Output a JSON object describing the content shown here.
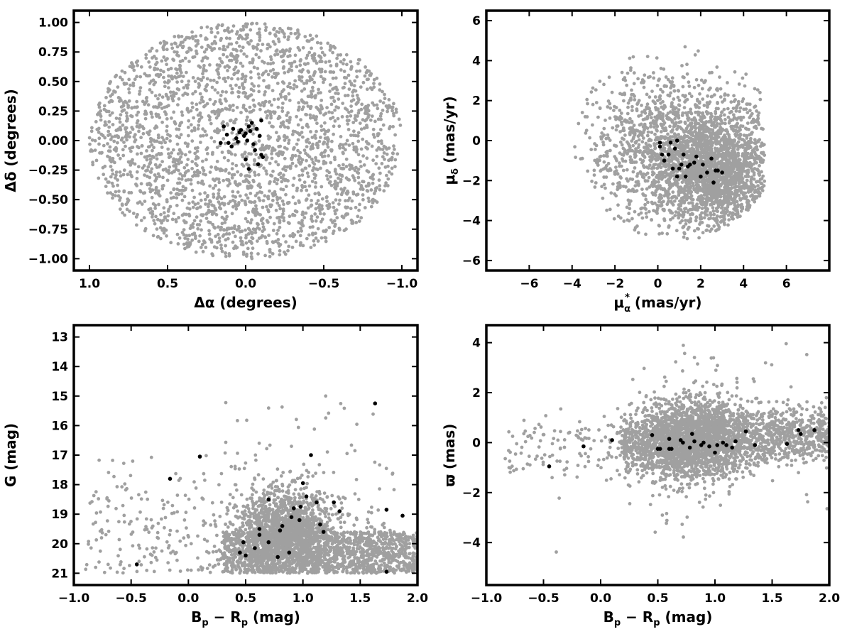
{
  "colors": {
    "field": "#a0a0a0",
    "members": "#000000",
    "frame": "#000000",
    "background": "#ffffff"
  },
  "chart_data": [
    {
      "type": "scatter",
      "id": "sky",
      "xlabel": "Δα (degrees)",
      "ylabel": "Δδ (degrees)",
      "xlim": [
        1.1,
        -1.1
      ],
      "ylim": [
        -1.1,
        1.1
      ],
      "x_inverted": true,
      "xticks": [
        1.0,
        0.5,
        0.0,
        -0.5,
        -1.0
      ],
      "xtick_labels": [
        "1.0",
        "0.5",
        "0.0",
        "−0.5",
        "−1.0"
      ],
      "yticks": [
        1.0,
        0.75,
        0.5,
        0.25,
        0.0,
        -0.25,
        -0.5,
        -0.75,
        -1.0
      ],
      "ytick_labels": [
        "1.00",
        "0.75",
        "0.50",
        "0.25",
        "0.00",
        "−0.25",
        "−0.50",
        "−0.75",
        "−1.00"
      ],
      "grid": false,
      "series": [
        {
          "role": "field",
          "color": "#a0a0a0",
          "count_shown": 2600,
          "distribution": {
            "shape": "disk",
            "center": [
              0,
              0
            ],
            "radius": 1.0
          },
          "points": []
        },
        {
          "role": "members",
          "color": "#000000",
          "points": [
            [
              0.14,
              0.12
            ],
            [
              0.12,
              0.05
            ],
            [
              0.11,
              -0.02
            ],
            [
              0.08,
              0.1
            ],
            [
              0.06,
              0.02
            ],
            [
              0.05,
              -0.01
            ],
            [
              0.04,
              0.07
            ],
            [
              0.03,
              0.09
            ],
            [
              0.01,
              0.04
            ],
            [
              0.0,
              0.06
            ],
            [
              -0.01,
              0.0
            ],
            [
              -0.02,
              0.12
            ],
            [
              -0.03,
              0.08
            ],
            [
              -0.04,
              0.15
            ],
            [
              -0.05,
              -0.03
            ],
            [
              -0.07,
              0.1
            ],
            [
              -0.1,
              0.17
            ],
            [
              -0.1,
              -0.12
            ],
            [
              -0.09,
              0.04
            ],
            [
              0.0,
              -0.16
            ],
            [
              -0.02,
              -0.24
            ],
            [
              -0.08,
              -0.2
            ],
            [
              -0.11,
              -0.14
            ],
            [
              0.16,
              -0.02
            ],
            [
              0.09,
              -0.05
            ],
            [
              -0.06,
              -0.08
            ]
          ]
        }
      ]
    },
    {
      "type": "scatter",
      "id": "proper-motion",
      "xlabel": "μ*α (mas/yr)",
      "ylabel": "μδ (mas/yr)",
      "xlim": [
        -8,
        8
      ],
      "ylim": [
        -6.5,
        6.5
      ],
      "xticks": [
        -6,
        -4,
        -2,
        0,
        2,
        4,
        6
      ],
      "xtick_labels": [
        "−6",
        "−4",
        "−2",
        "0",
        "2",
        "4",
        "6"
      ],
      "yticks": [
        6,
        4,
        2,
        0,
        -2,
        -4,
        -6
      ],
      "ytick_labels": [
        "6",
        "4",
        "2",
        "0",
        "−2",
        "−4",
        "−6"
      ],
      "grid": false,
      "series": [
        {
          "role": "field",
          "color": "#a0a0a0",
          "count_shown": 3000,
          "distribution": {
            "shape": "truncated-cloud",
            "center": [
              2.8,
              -1.5
            ],
            "spread": [
              1.6,
              1.4
            ],
            "halo_center": [
              0.5,
              -0.3
            ],
            "halo_spread": [
              2.2,
              2.0
            ],
            "x_max": 5.0
          },
          "points": []
        },
        {
          "role": "members",
          "color": "#000000",
          "points": [
            [
              0.1,
              -0.3
            ],
            [
              0.2,
              -0.7
            ],
            [
              0.6,
              -0.1
            ],
            [
              0.8,
              -0.4
            ],
            [
              0.9,
              0.0
            ],
            [
              1.0,
              -1.4
            ],
            [
              1.2,
              -0.7
            ],
            [
              1.4,
              -1.3
            ],
            [
              1.5,
              -1.2
            ],
            [
              1.7,
              -1.1
            ],
            [
              1.8,
              -0.8
            ],
            [
              2.0,
              -1.8
            ],
            [
              2.1,
              -1.2
            ],
            [
              2.3,
              -1.6
            ],
            [
              2.5,
              -0.9
            ],
            [
              2.6,
              -2.1
            ],
            [
              2.8,
              -1.5
            ],
            [
              3.0,
              -1.6
            ],
            [
              1.3,
              -1.8
            ],
            [
              0.9,
              -1.8
            ],
            [
              0.7,
              -1.4
            ],
            [
              0.3,
              -1.0
            ],
            [
              1.1,
              -1.2
            ],
            [
              2.7,
              -1.5
            ],
            [
              0.5,
              -0.7
            ],
            [
              0.1,
              -0.1
            ]
          ]
        }
      ]
    },
    {
      "type": "scatter",
      "id": "cmd",
      "xlabel": "Bp − Rp (mag)",
      "ylabel": "G (mag)",
      "xlim": [
        -1.0,
        2.0
      ],
      "ylim": [
        21.4,
        12.6
      ],
      "y_inverted": true,
      "xticks": [
        -1.0,
        -0.5,
        0.0,
        0.5,
        1.0,
        1.5,
        2.0
      ],
      "xtick_labels": [
        "−1.0",
        "−0.5",
        "0.0",
        "0.5",
        "1.0",
        "1.5",
        "2.0"
      ],
      "yticks": [
        21,
        20,
        19,
        18,
        17,
        16,
        15,
        14,
        13
      ],
      "ytick_labels": [
        "21",
        "20",
        "19",
        "18",
        "17",
        "16",
        "15",
        "14",
        "13"
      ],
      "grid": false,
      "series": [
        {
          "role": "field",
          "color": "#a0a0a0",
          "count_shown": 3300,
          "distribution": {
            "shape": "cmd-wedge",
            "core_color": 0.85,
            "core_mag": 19.6,
            "faint_limit": 21.0
          },
          "points": []
        },
        {
          "role": "members",
          "color": "#000000",
          "points": [
            [
              -0.45,
              20.7
            ],
            [
              -0.16,
              17.8
            ],
            [
              0.1,
              17.05
            ],
            [
              0.45,
              20.3
            ],
            [
              0.48,
              19.95
            ],
            [
              0.5,
              20.4
            ],
            [
              0.58,
              20.15
            ],
            [
              0.62,
              19.7
            ],
            [
              0.62,
              19.5
            ],
            [
              0.7,
              19.95
            ],
            [
              0.7,
              18.5
            ],
            [
              0.78,
              20.45
            ],
            [
              0.8,
              19.55
            ],
            [
              0.82,
              19.4
            ],
            [
              0.88,
              20.3
            ],
            [
              0.9,
              19.1
            ],
            [
              0.92,
              18.8
            ],
            [
              0.97,
              19.2
            ],
            [
              0.98,
              18.75
            ],
            [
              1.0,
              17.95
            ],
            [
              1.03,
              18.4
            ],
            [
              1.07,
              17.0
            ],
            [
              1.12,
              18.6
            ],
            [
              1.15,
              19.35
            ],
            [
              1.18,
              19.6
            ],
            [
              1.27,
              18.6
            ],
            [
              1.32,
              18.9
            ],
            [
              1.63,
              15.25
            ],
            [
              1.73,
              18.85
            ],
            [
              1.73,
              20.95
            ],
            [
              1.87,
              19.05
            ]
          ]
        }
      ]
    },
    {
      "type": "scatter",
      "id": "parallax",
      "xlabel": "Bp − Rp (mag)",
      "ylabel": "ϖ (mas)",
      "xlim": [
        -1.0,
        2.0
      ],
      "ylim": [
        -5.7,
        4.7
      ],
      "xticks": [
        -1.0,
        -0.5,
        0.0,
        0.5,
        1.0,
        1.5,
        2.0
      ],
      "xtick_labels": [
        "−1.0",
        "−0.5",
        "0.0",
        "0.5",
        "1.0",
        "1.5",
        "2.0"
      ],
      "yticks": [
        4,
        2,
        0,
        -2,
        -4
      ],
      "ytick_labels": [
        "4",
        "2",
        "0",
        "−2",
        "−4"
      ],
      "grid": false,
      "series": [
        {
          "role": "field",
          "color": "#a0a0a0",
          "count_shown": 3300,
          "distribution": {
            "shape": "band",
            "center_y": 0.1,
            "slope": 0.2
          },
          "points": []
        },
        {
          "role": "members",
          "color": "#000000",
          "points": [
            [
              -0.45,
              -0.95
            ],
            [
              -0.15,
              -0.15
            ],
            [
              0.1,
              0.1
            ],
            [
              0.45,
              0.3
            ],
            [
              0.5,
              -0.25
            ],
            [
              0.52,
              -0.25
            ],
            [
              0.6,
              -0.25
            ],
            [
              0.6,
              0.15
            ],
            [
              0.62,
              -0.25
            ],
            [
              0.7,
              0.1
            ],
            [
              0.72,
              0.0
            ],
            [
              0.78,
              -0.2
            ],
            [
              0.8,
              0.35
            ],
            [
              0.82,
              0.05
            ],
            [
              0.88,
              -0.1
            ],
            [
              0.9,
              0.0
            ],
            [
              0.95,
              -0.15
            ],
            [
              1.0,
              -0.4
            ],
            [
              1.02,
              -0.1
            ],
            [
              1.07,
              0.0
            ],
            [
              1.1,
              -0.1
            ],
            [
              1.15,
              -0.2
            ],
            [
              1.18,
              0.05
            ],
            [
              1.27,
              0.45
            ],
            [
              1.35,
              -0.1
            ],
            [
              1.63,
              -0.05
            ],
            [
              1.73,
              0.5
            ],
            [
              1.75,
              0.35
            ],
            [
              1.87,
              0.5
            ]
          ]
        }
      ]
    }
  ]
}
